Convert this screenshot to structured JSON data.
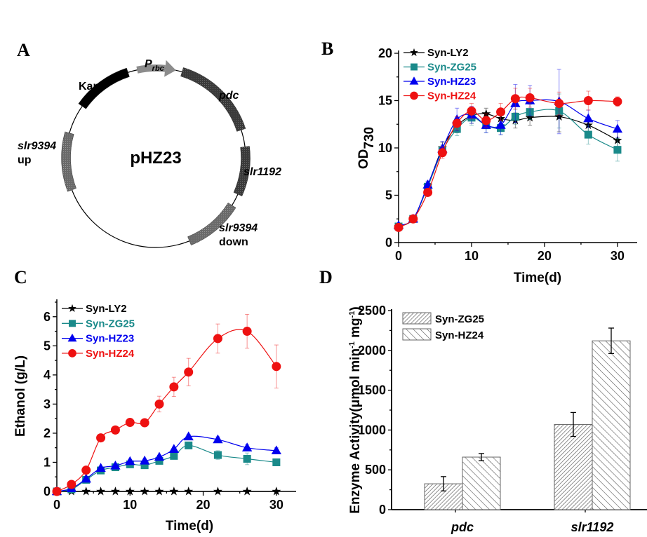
{
  "figure": {
    "panels": [
      "A",
      "B",
      "C",
      "D"
    ]
  },
  "plasmid": {
    "panel_label": "A",
    "name": "pHZ23",
    "features": [
      {
        "id": "kan",
        "label": "Kan",
        "italic": false,
        "color": "#000000",
        "type": "gene"
      },
      {
        "id": "prbc",
        "label": "P",
        "sub": "rbc",
        "italic": true,
        "color": "#8c8c8c",
        "type": "promoter"
      },
      {
        "id": "pdc",
        "label": "pdc",
        "italic": true,
        "color": "#4a4a4a",
        "type": "gene"
      },
      {
        "id": "slr1192",
        "label": "slr1192",
        "italic": true,
        "color": "#444444",
        "type": "gene"
      },
      {
        "id": "slr9394-down",
        "label": "slr9394",
        "label2": "down",
        "italic": true,
        "color": "#6e6e6e",
        "type": "homology-arm"
      },
      {
        "id": "slr9394-up",
        "label": "slr9394",
        "label2": "up",
        "italic": true,
        "color": "#6e6e6e",
        "type": "homology-arm"
      }
    ]
  },
  "chart_data": [
    {
      "panel": "B",
      "type": "line",
      "title": "",
      "xlabel": "Time(d)",
      "ylabel": "OD",
      "ylabel_sub": "730",
      "xlim": [
        0,
        32.7
      ],
      "ylim": [
        0,
        20
      ],
      "xticks": [
        0,
        10,
        20,
        30
      ],
      "yticks": [
        0,
        5,
        10,
        15,
        20
      ],
      "grid": false,
      "legend_position": "top-left",
      "x": [
        0,
        2,
        4,
        6,
        8,
        10,
        12,
        14,
        16,
        18,
        22,
        26,
        30
      ],
      "series": [
        {
          "name": "Syn-LY2",
          "color": "#000000",
          "marker": "star",
          "values": [
            1.7,
            2.5,
            6.0,
            10.0,
            12.3,
            13.4,
            13.6,
            13.1,
            12.9,
            13.2,
            13.3,
            12.4,
            10.8
          ],
          "errors": [
            0.2,
            0.2,
            0.4,
            0.6,
            0.7,
            0.8,
            0.6,
            0.7,
            0.8,
            0.8,
            1.6,
            0.8,
            1.0
          ]
        },
        {
          "name": "Syn-ZG25",
          "color": "#1a8a8a",
          "marker": "square",
          "values": [
            1.7,
            2.5,
            5.9,
            9.7,
            12.0,
            13.2,
            12.4,
            12.1,
            13.3,
            13.8,
            13.9,
            11.4,
            9.8
          ],
          "errors": [
            0.2,
            0.2,
            0.4,
            0.6,
            0.7,
            0.8,
            0.8,
            0.7,
            0.8,
            0.8,
            1.8,
            1.0,
            1.2
          ]
        },
        {
          "name": "Syn-HZ23",
          "color": "#0000ee",
          "marker": "triangle",
          "values": [
            1.8,
            2.5,
            6.1,
            9.9,
            13.0,
            13.5,
            12.4,
            12.4,
            14.7,
            15.0,
            14.9,
            13.1,
            12.0
          ],
          "errors": [
            0.2,
            0.2,
            0.4,
            0.8,
            1.2,
            0.9,
            0.8,
            1.0,
            2.0,
            1.6,
            3.4,
            0.9,
            0.9
          ]
        },
        {
          "name": "Syn-HZ24",
          "color": "#ee1111",
          "marker": "circle",
          "values": [
            1.6,
            2.5,
            5.3,
            9.5,
            12.6,
            13.9,
            12.9,
            13.8,
            15.2,
            15.3,
            14.7,
            15.0,
            14.9
          ],
          "errors": [
            0.2,
            0.2,
            0.4,
            0.6,
            0.7,
            0.8,
            0.7,
            0.9,
            1.1,
            1.0,
            1.2,
            1.0,
            0.5
          ]
        }
      ]
    },
    {
      "panel": "C",
      "type": "line",
      "title": "",
      "xlabel": "Time(d)",
      "ylabel": "Ethanol  (g/L)",
      "xlim": [
        0,
        32.7
      ],
      "ylim": [
        0,
        6.5
      ],
      "xticks": [
        0,
        10,
        20,
        30
      ],
      "yticks": [
        0,
        1,
        2,
        3,
        4,
        5,
        6
      ],
      "grid": false,
      "legend_position": "top-left",
      "x": [
        0,
        2,
        4,
        6,
        8,
        10,
        12,
        14,
        16,
        18,
        22,
        26,
        30
      ],
      "series": [
        {
          "name": "Syn-LY2",
          "color": "#000000",
          "marker": "star",
          "values": [
            0,
            0,
            0,
            0,
            0,
            0,
            0,
            0,
            0,
            0,
            0,
            0,
            0
          ],
          "errors": [
            0,
            0,
            0,
            0,
            0,
            0,
            0,
            0,
            0,
            0,
            0,
            0,
            0
          ]
        },
        {
          "name": "Syn-ZG25",
          "color": "#1a8a8a",
          "marker": "square",
          "values": [
            0,
            0.07,
            0.4,
            0.72,
            0.83,
            0.93,
            0.9,
            1.05,
            1.22,
            1.58,
            1.25,
            1.12,
            1.0
          ],
          "errors": [
            0,
            0.02,
            0.05,
            0.05,
            0.06,
            0.05,
            0.06,
            0.06,
            0.08,
            0.1,
            0.15,
            0.2,
            0.1
          ]
        },
        {
          "name": "Syn-HZ23",
          "color": "#0000ee",
          "marker": "triangle",
          "values": [
            0,
            0.1,
            0.43,
            0.8,
            0.88,
            1.03,
            1.05,
            1.18,
            1.45,
            1.88,
            1.78,
            1.5,
            1.4
          ],
          "errors": [
            0,
            0.02,
            0.05,
            0.05,
            0.06,
            0.06,
            0.06,
            0.06,
            0.08,
            0.08,
            0.1,
            0.1,
            0.1
          ]
        },
        {
          "name": "Syn-HZ24",
          "color": "#ee1111",
          "marker": "circle",
          "values": [
            0,
            0.24,
            0.73,
            1.84,
            2.11,
            2.37,
            2.36,
            3.0,
            3.59,
            4.1,
            5.25,
            5.5,
            4.29
          ],
          "errors": [
            0,
            0.03,
            0.05,
            0.06,
            0.05,
            0.05,
            0.06,
            0.27,
            0.33,
            0.47,
            0.5,
            0.58,
            0.74
          ]
        }
      ]
    },
    {
      "panel": "D",
      "type": "bar",
      "title": "",
      "xlabel": "",
      "ylabel": "Enzyme Activity(μmol min",
      "ylabel_sup1": "-1",
      "ylabel_mid": " mg",
      "ylabel_sup2": "-1",
      "ylabel_end": ")",
      "ylim": [
        0,
        2500
      ],
      "yticks": [
        0,
        500,
        1000,
        1500,
        2000,
        2500
      ],
      "grid": false,
      "legend_position": "top-left",
      "categories": [
        "pdc",
        "slr1192"
      ],
      "series": [
        {
          "name": "Syn-ZG25",
          "hatch": "dense-forward",
          "values": [
            325,
            1070
          ],
          "errors": [
            90,
            150
          ]
        },
        {
          "name": "Syn-HZ24",
          "hatch": "sparse-backward",
          "values": [
            660,
            2120
          ],
          "errors": [
            45,
            160
          ]
        }
      ]
    }
  ]
}
